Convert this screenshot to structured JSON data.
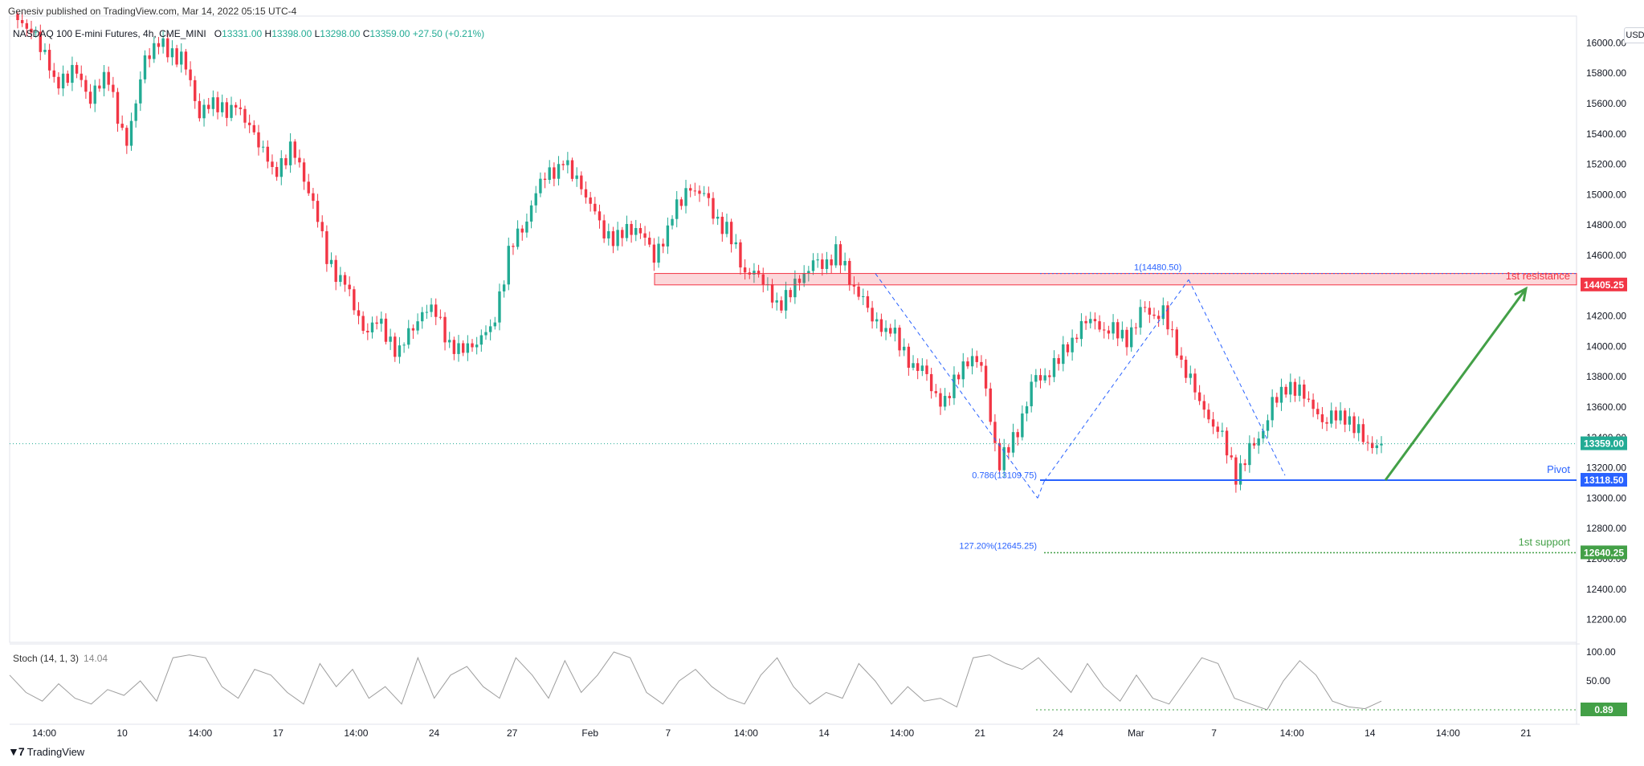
{
  "header": {
    "published": "Genesiv published on TradingView.com, Mar 14, 2022 05:15 UTC-4",
    "symbol": "NASDAQ 100 E-mini Futures, 4h, CME_MINI",
    "open_label": "O",
    "open": "13331.00",
    "high_label": "H",
    "high": "13398.00",
    "low_label": "L",
    "low": "13298.00",
    "close_label": "C",
    "close": "13359.00",
    "change": "+27.50 (+0.21%)"
  },
  "currency": "USD",
  "logo": "TradingView",
  "colors": {
    "up": "#22ab94",
    "down": "#f23645",
    "resistance": "#f23645",
    "pivot": "#2962ff",
    "support": "#43a047",
    "fib": "#2962ff",
    "arrow": "#43a047",
    "stoch": "#9e9e9e"
  },
  "chart_data": {
    "type": "candlestick",
    "title": "NASDAQ 100 E-mini Futures, 4h, CME_MINI",
    "ylim": [
      12050,
      16150
    ],
    "y_ticks": [
      "16000.00",
      "15800.00",
      "15600.00",
      "15400.00",
      "15200.00",
      "15000.00",
      "14800.00",
      "14600.00",
      "14400.00",
      "14200.00",
      "14000.00",
      "13800.00",
      "13600.00",
      "13400.00",
      "13200.00",
      "13000.00",
      "12800.00",
      "12600.00",
      "12400.00",
      "12200.00"
    ],
    "x_ticks": [
      "14:00",
      "10",
      "14:00",
      "17",
      "14:00",
      "24",
      "27",
      "Feb",
      "7",
      "14:00",
      "14",
      "14:00",
      "21",
      "24",
      "Mar",
      "7",
      "14:00",
      "14",
      "14:00",
      "21"
    ],
    "last_price": "13359.00",
    "close_path": [
      16120,
      16050,
      15750,
      15820,
      15650,
      15780,
      15300,
      15900,
      16000,
      15900,
      15550,
      15600,
      15560,
      15400,
      15150,
      15300,
      15050,
      14600,
      14400,
      14100,
      14150,
      13950,
      14200,
      14250,
      13950,
      14000,
      14100,
      14600,
      14850,
      15150,
      15200,
      15050,
      14800,
      14700,
      14800,
      14600,
      14850,
      15050,
      14950,
      14750,
      14500,
      14450,
      14250,
      14450,
      14550,
      14600,
      14400,
      14200,
      14100,
      13900,
      13800,
      13600,
      13900,
      13900,
      13200,
      13450,
      13800,
      13850,
      14050,
      14200,
      14100,
      14050,
      14250,
      14200,
      13900,
      13650,
      13450,
      13150,
      13350,
      13600,
      13750,
      13650,
      13500,
      13550,
      13380,
      13359
    ],
    "levels": [
      {
        "name": "1st resistance",
        "price": 14405.25,
        "label": "14405.25",
        "zone_top": 14480.5
      },
      {
        "name": "Pivot",
        "price": 13118.5,
        "label": "13118.50"
      },
      {
        "name": "1st support",
        "price": 12640.25,
        "label": "12640.25"
      }
    ],
    "fib_labels": [
      {
        "text": "1(14480.50)",
        "price": 14480.5
      },
      {
        "text": "0.786(13109.75)",
        "price": 13109.75
      },
      {
        "text": "127.20%(12645.25)",
        "price": 12645.25
      }
    ],
    "stochastic": {
      "label": "Stoch (14, 1, 3)",
      "value": "14.04",
      "ylim": [
        0,
        100
      ],
      "y_ticks": [
        "100.00",
        "50.00",
        "0.00"
      ],
      "marker": "0.89",
      "values": [
        60,
        30,
        15,
        45,
        20,
        10,
        35,
        25,
        50,
        15,
        90,
        95,
        90,
        40,
        20,
        70,
        60,
        30,
        10,
        80,
        40,
        70,
        20,
        40,
        10,
        90,
        20,
        60,
        75,
        40,
        20,
        90,
        60,
        20,
        85,
        30,
        60,
        100,
        90,
        30,
        10,
        50,
        70,
        40,
        20,
        10,
        60,
        90,
        40,
        10,
        30,
        20,
        80,
        50,
        10,
        40,
        15,
        20,
        5,
        90,
        95,
        80,
        70,
        90,
        60,
        30,
        80,
        40,
        15,
        60,
        20,
        10,
        50,
        90,
        80,
        20,
        10,
        0,
        50,
        85,
        60,
        15,
        5,
        2,
        15
      ]
    }
  }
}
